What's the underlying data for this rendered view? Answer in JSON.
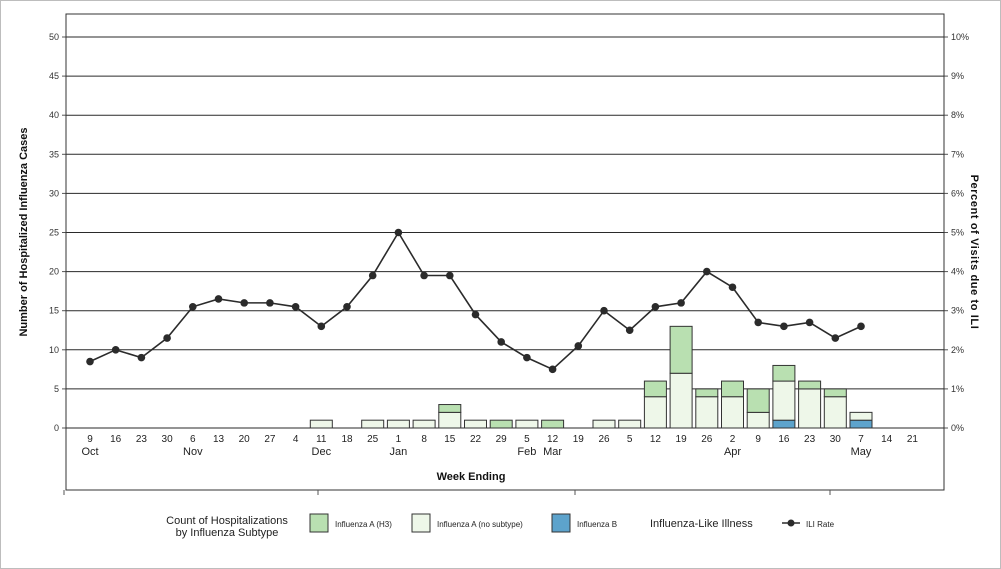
{
  "chart_data": {
    "type": "bar",
    "xlabel": "Week Ending",
    "ylabel": "Number of Hospitalized Influenza Cases",
    "ylabel_right": "Percent of Visits due to ILI",
    "ylim": [
      0,
      50
    ],
    "y_ticks": [
      "0",
      "5",
      "10",
      "15",
      "20",
      "25",
      "30",
      "35",
      "40",
      "45",
      "50"
    ],
    "y2lim": [
      0,
      10
    ],
    "y2_ticks": [
      "0%",
      "1%",
      "2%",
      "3%",
      "4%",
      "5%",
      "6%",
      "7%",
      "8%",
      "9%",
      "10%"
    ],
    "categories": [
      "9",
      "16",
      "23",
      "30",
      "6",
      "13",
      "20",
      "27",
      "4",
      "11",
      "18",
      "25",
      "1",
      "8",
      "15",
      "22",
      "29",
      "5",
      "12",
      "19",
      "26",
      "5",
      "12",
      "19",
      "26",
      "2",
      "9",
      "16",
      "23",
      "30",
      "7",
      "14",
      "21"
    ],
    "months": [
      {
        "label": "Oct",
        "at": "9"
      },
      {
        "label": "Nov",
        "at": "6"
      },
      {
        "label": "Dec",
        "at": "11"
      },
      {
        "label": "Jan",
        "at": "1"
      },
      {
        "label": "Feb",
        "at": "5"
      },
      {
        "label": "Mar",
        "at": "12"
      },
      {
        "label": "Apr",
        "at": "2"
      },
      {
        "label": "May",
        "at": "7"
      }
    ],
    "stacks": [
      {
        "name": "Influenza B",
        "color": "#5da3cc",
        "values": [
          0,
          0,
          0,
          0,
          0,
          0,
          0,
          0,
          0,
          0,
          0,
          0,
          0,
          0,
          0,
          0,
          0,
          0,
          0,
          0,
          0,
          0,
          0,
          0,
          0,
          0,
          0,
          1,
          0,
          0,
          1,
          0,
          0
        ]
      },
      {
        "name": "Influenza A (no subtype)",
        "color": "#eef7e9",
        "values": [
          0,
          0,
          0,
          0,
          0,
          0,
          0,
          0,
          0,
          1,
          0,
          1,
          1,
          1,
          2,
          1,
          0,
          1,
          0,
          0,
          1,
          1,
          4,
          7,
          4,
          4,
          2,
          5,
          5,
          4,
          1,
          0,
          0
        ]
      },
      {
        "name": "Influenza A (H3)",
        "color": "#b9e0b1",
        "values": [
          0,
          0,
          0,
          0,
          0,
          0,
          0,
          0,
          0,
          0,
          0,
          0,
          0,
          0,
          1,
          0,
          1,
          0,
          1,
          0,
          0,
          0,
          2,
          6,
          1,
          2,
          3,
          2,
          1,
          1,
          0,
          0,
          0
        ]
      }
    ],
    "line": {
      "name": "ILI Rate",
      "color": "#2b2b2b",
      "values": [
        1.7,
        2.0,
        1.8,
        2.3,
        3.1,
        3.3,
        3.2,
        3.2,
        3.1,
        2.6,
        3.1,
        3.9,
        5.0,
        3.9,
        3.9,
        2.9,
        2.2,
        1.8,
        1.5,
        2.1,
        3.0,
        2.5,
        3.1,
        3.2,
        4.0,
        3.6,
        2.7,
        2.6,
        2.7,
        2.3,
        2.6,
        null,
        null
      ]
    },
    "grid": true,
    "legend_position": "bottom"
  },
  "legend": {
    "group_title_line1": "Count of Hospitalizations",
    "group_title_line2": "by Influenza Subtype",
    "item_h3": "Influenza A (H3)",
    "item_nosub": "Influenza A (no subtype)",
    "item_b": "Influenza B",
    "ili_title": "Influenza-Like Illness",
    "ili_item": "ILI Rate"
  }
}
